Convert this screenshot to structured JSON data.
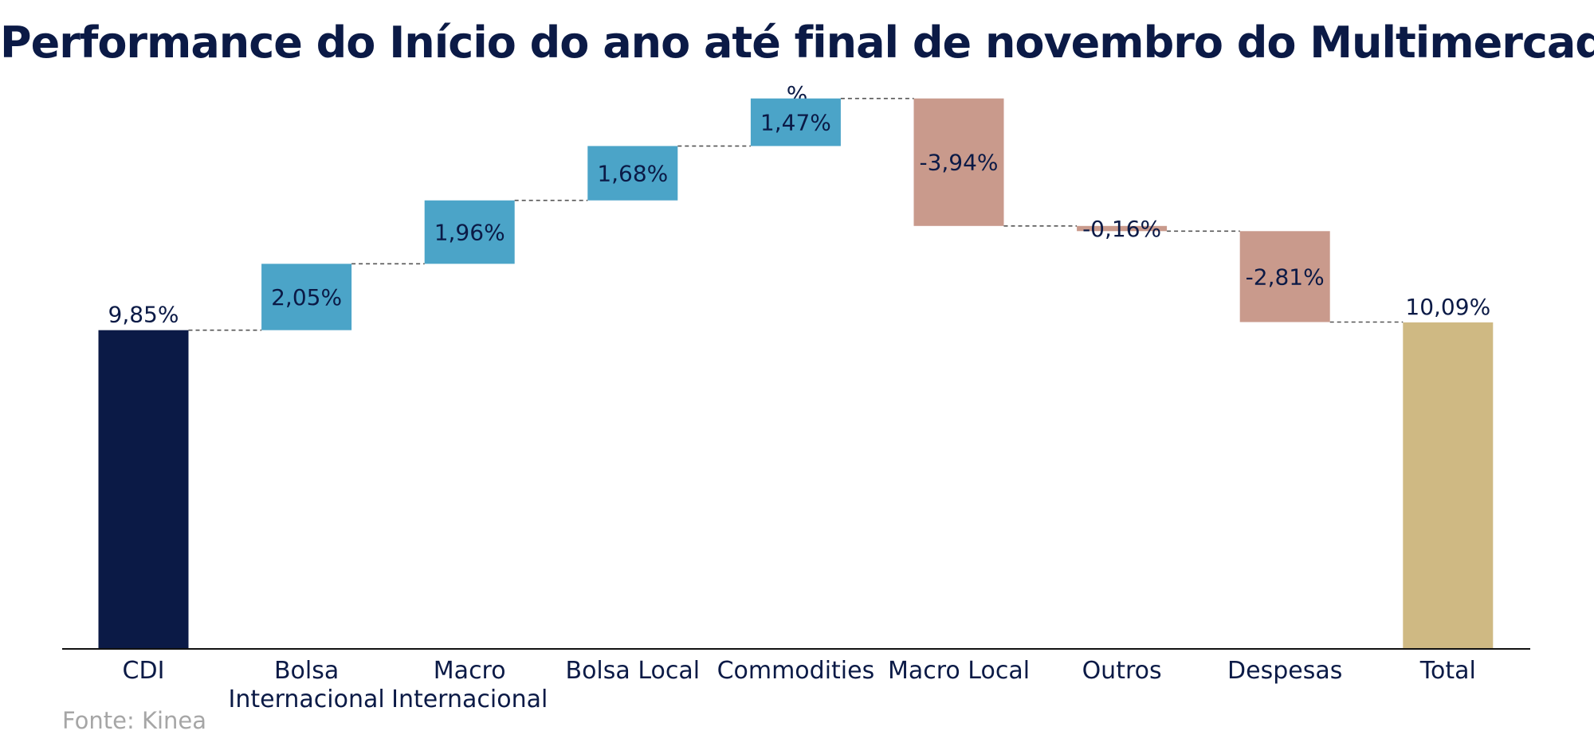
{
  "title": "Performance do Início do ano até final de novembro do Multimercados",
  "unit_label": "%",
  "source": "Fonte: Kinea",
  "colors": {
    "base": "#0b1a46",
    "positive": "#4ba4c8",
    "negative": "#c99a8c",
    "total": "#cfb983",
    "text": "#0b1a46"
  },
  "chart_data": {
    "type": "bar",
    "subtype": "waterfall",
    "categories": [
      "CDI",
      "Bolsa Internacional",
      "Macro Internacional",
      "Bolsa Local",
      "Commodities",
      "Macro Local",
      "Outros",
      "Despesas",
      "Total"
    ],
    "tick_labels": [
      [
        "CDI"
      ],
      [
        "Bolsa",
        "Internacional"
      ],
      [
        "Macro",
        "Internacional"
      ],
      [
        "Bolsa Local"
      ],
      [
        "Commodities"
      ],
      [
        "Macro Local"
      ],
      [
        "Outros"
      ],
      [
        "Despesas"
      ],
      [
        "Total"
      ]
    ],
    "values": [
      9.85,
      2.05,
      1.96,
      1.68,
      1.47,
      -3.94,
      -0.16,
      -2.81,
      10.09
    ],
    "value_labels": [
      "9,85%",
      "2,05%",
      "1,96%",
      "1,68%",
      "1,47%",
      "-3,94%",
      "-0,16%",
      "-2,81%",
      "10,09%"
    ],
    "kinds": [
      "base",
      "delta",
      "delta",
      "delta",
      "delta",
      "delta",
      "delta",
      "delta",
      "total"
    ],
    "ylim": [
      0,
      17.1
    ],
    "grid": false,
    "legend": "none"
  }
}
